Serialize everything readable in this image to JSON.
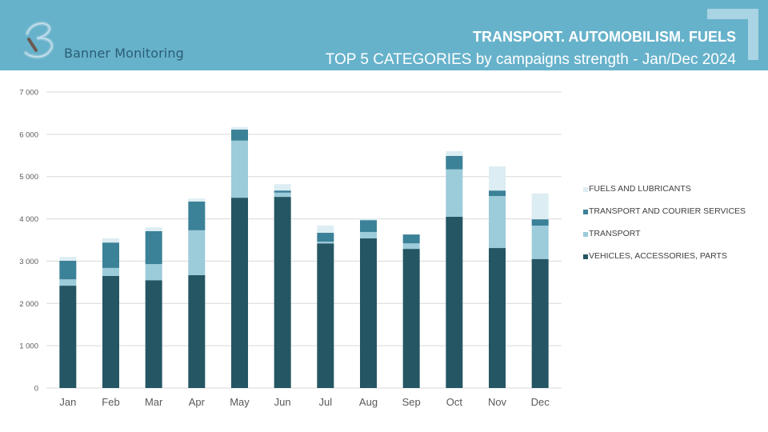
{
  "header": {
    "brand": "Banner Monitoring",
    "title": "TRANSPORT. AUTOMOBILISM. FUELS",
    "subtitle": "TOP 5 CATEGORIES by campaigns strength - Jan/Dec 2024"
  },
  "colors": {
    "header_bg": "#67b2cb",
    "vehicles": "#245663",
    "transport": "#9ccbda",
    "courier": "#3b8198",
    "fuels": "#dcedf3"
  },
  "chart_data": {
    "type": "bar",
    "stacked": true,
    "title": "TOP 5 CATEGORIES by campaigns strength - Jan/Dec 2024",
    "xlabel": "",
    "ylabel": "",
    "ylim": [
      0,
      7000
    ],
    "yticks": [
      0,
      1000,
      2000,
      3000,
      4000,
      5000,
      6000,
      7000
    ],
    "ytick_labels": [
      "0",
      "1 000",
      "2 000",
      "3 000",
      "4 000",
      "5 000",
      "6 000",
      "7 000"
    ],
    "grid": true,
    "legend_position": "right",
    "categories": [
      "Jan",
      "Feb",
      "Mar",
      "Apr",
      "May",
      "Jun",
      "Jul",
      "Aug",
      "Sep",
      "Oct",
      "Nov",
      "Dec"
    ],
    "series": [
      {
        "name": "VEHICLES, ACCESSORIES, PARTS",
        "color_key": "vehicles",
        "values": [
          2420,
          2650,
          2550,
          2670,
          4500,
          4520,
          3420,
          3540,
          3290,
          4050,
          3310,
          3050
        ]
      },
      {
        "name": "TRANSPORT",
        "color_key": "transport",
        "values": [
          150,
          190,
          380,
          1060,
          1350,
          100,
          40,
          150,
          130,
          1120,
          1230,
          790
        ]
      },
      {
        "name": "TRANSPORT AND COURIER SERVICES",
        "color_key": "courier",
        "values": [
          440,
          600,
          780,
          680,
          260,
          50,
          210,
          280,
          210,
          320,
          130,
          150
        ]
      },
      {
        "name": "FUELS AND LUBRICANTS",
        "color_key": "fuels",
        "values": [
          90,
          100,
          90,
          70,
          60,
          150,
          170,
          40,
          0,
          110,
          570,
          610
        ]
      }
    ],
    "legend_order": [
      "FUELS AND LUBRICANTS",
      "TRANSPORT AND COURIER SERVICES",
      "TRANSPORT",
      "VEHICLES, ACCESSORIES, PARTS"
    ]
  }
}
